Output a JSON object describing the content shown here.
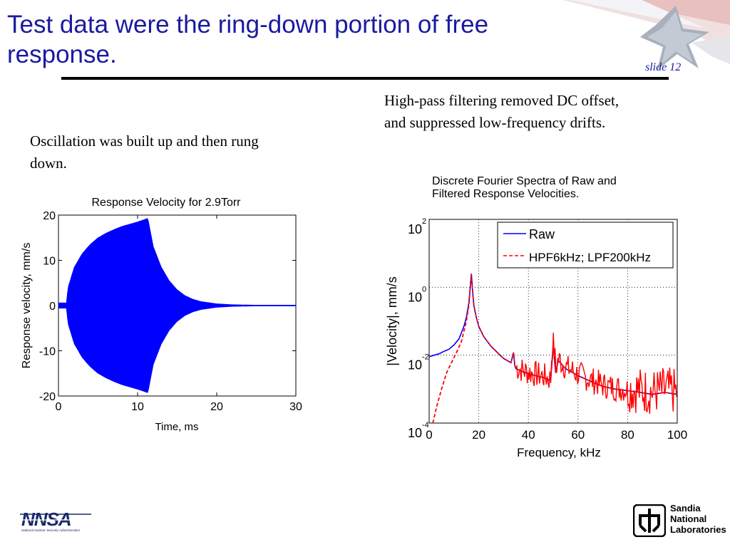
{
  "slide": {
    "title_line1": "Test data were the ring-down portion of free",
    "title_line2": "response.",
    "slide_number": "slide 12",
    "note_left": "Oscillation was built up and then rung down.",
    "note_right": "High-pass filtering removed DC offset, and suppressed low-frequency drifts.",
    "spectra_caption_line1": "Discrete Fourier Spectra of Raw and",
    "spectra_caption_line2": "Filtered Response Velocities."
  },
  "logos": {
    "nnsa_text": "NNSA",
    "nnsa_subtitle": "National Nuclear Security Administration",
    "sandia_line1": "Sandia",
    "sandia_line2": "National",
    "sandia_line3": "Laboratories"
  },
  "colors": {
    "title": "#1a1aa0",
    "raw": "#0000ff",
    "filtered": "#ff0000"
  },
  "chart_data": [
    {
      "type": "line",
      "title": "Response Velocity for 2.9Torr",
      "xlabel": "Time, ms",
      "ylabel": "Response velocity, mm/s",
      "xlim": [
        0,
        30
      ],
      "ylim": [
        -20,
        20
      ],
      "xticks": [
        "0",
        "10",
        "20",
        "30"
      ],
      "yticks": [
        "20",
        "10",
        "0",
        "-10",
        "-20"
      ],
      "envelope": {
        "t": [
          0,
          1,
          1.2,
          2,
          3,
          4,
          5,
          6,
          7,
          8,
          9,
          10,
          11.3,
          12,
          13,
          14,
          15,
          16,
          17,
          18,
          20,
          22,
          25,
          30
        ],
        "amp": [
          0.6,
          0.6,
          4,
          8.5,
          11.5,
          13.5,
          15,
          16,
          16.8,
          17.5,
          18,
          18.5,
          19.3,
          13,
          8.5,
          5.5,
          3.5,
          2.2,
          1.4,
          0.9,
          0.4,
          0.2,
          0.1,
          0.1
        ]
      },
      "series": [
        {
          "values_desc": "ring-down oscillation"
        }
      ]
    },
    {
      "type": "line",
      "ylog": true,
      "xlabel": "Frequency, kHz",
      "ylabel": "|Velocity|, mm/s",
      "xlim": [
        0,
        100
      ],
      "ylim": [
        0.0001,
        100
      ],
      "xticks": [
        "0",
        "20",
        "40",
        "60",
        "80",
        "100"
      ],
      "yticks": [
        {
          "base": "10",
          "exp": "2"
        },
        {
          "base": "10",
          "exp": "0"
        },
        {
          "base": "10",
          "exp": "-2"
        },
        {
          "base": "10",
          "exp": "-4"
        }
      ],
      "grid": true,
      "legend_position": "top-right",
      "series": [
        {
          "name": "Raw",
          "x": [
            0,
            2,
            4,
            6,
            8,
            10,
            12,
            14,
            15,
            16,
            16.5,
            17,
            17.5,
            18,
            19,
            20,
            22,
            25,
            28,
            30,
            33,
            34,
            34.5,
            35,
            38,
            42,
            46,
            49,
            50,
            51,
            52,
            55,
            60,
            65,
            70,
            75,
            80,
            85,
            90,
            95,
            100
          ],
          "y": [
            0.009,
            0.01,
            0.011,
            0.013,
            0.015,
            0.02,
            0.03,
            0.07,
            0.13,
            0.35,
            0.9,
            2.5,
            0.8,
            0.3,
            0.13,
            0.07,
            0.035,
            0.018,
            0.011,
            0.008,
            0.006,
            0.012,
            0.005,
            0.004,
            0.0032,
            0.0026,
            0.0022,
            0.0018,
            0.02,
            0.003,
            0.007,
            0.004,
            0.0025,
            0.0017,
            0.0012,
            0.001,
            0.0009,
            0.0008,
            0.0007,
            0.0008,
            0.0007
          ]
        },
        {
          "name": "HPF6kHz; LPF200kHz",
          "x": [
            1.5,
            3,
            5,
            7,
            9,
            11,
            13,
            14,
            15,
            16,
            16.5,
            17,
            17.5,
            18,
            19,
            20,
            22,
            25,
            28,
            30,
            33,
            34,
            34.5,
            35,
            38,
            42,
            46,
            49,
            50,
            51,
            52,
            55,
            60,
            65,
            70,
            75,
            80,
            85,
            90,
            95,
            100
          ],
          "y": [
            0.0001,
            0.0003,
            0.001,
            0.003,
            0.006,
            0.012,
            0.025,
            0.05,
            0.1,
            0.3,
            0.85,
            2.4,
            0.8,
            0.3,
            0.13,
            0.07,
            0.035,
            0.018,
            0.011,
            0.008,
            0.006,
            0.012,
            0.005,
            0.004,
            0.0032,
            0.0026,
            0.0022,
            0.0018,
            0.02,
            0.003,
            0.007,
            0.004,
            0.0025,
            0.0017,
            0.0012,
            0.001,
            0.0009,
            0.0008,
            0.0007,
            0.0008,
            0.0007
          ]
        }
      ]
    }
  ]
}
